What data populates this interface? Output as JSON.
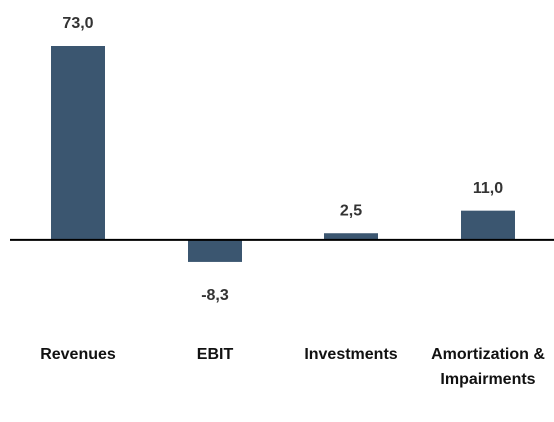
{
  "chart_data": {
    "type": "bar",
    "categories": [
      "Revenues",
      "EBIT",
      "Investments",
      "Amortization & Impairments"
    ],
    "values": [
      73.0,
      -8.3,
      2.5,
      11.0
    ],
    "value_labels": [
      "73,0",
      "-8,3",
      "2,5",
      "11,0"
    ],
    "color": "#3b5670",
    "ylim": [
      -20,
      73
    ]
  }
}
